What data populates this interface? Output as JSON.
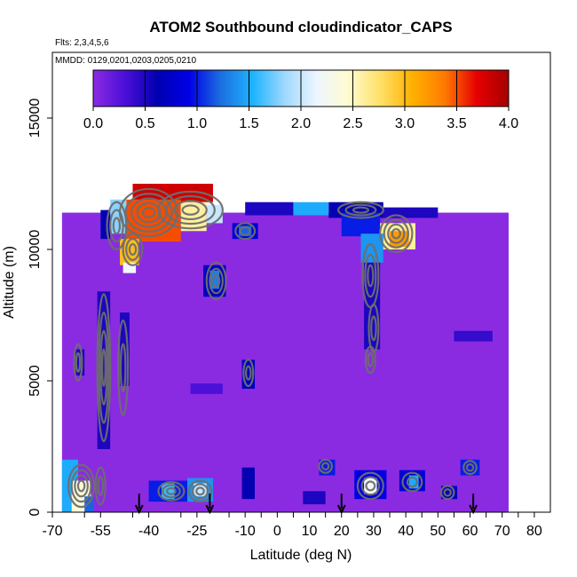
{
  "chart_data": {
    "type": "heatmap",
    "title": "ATOM2 Southbound cloudindicator_CAPS",
    "flights_note": "Flts: 2,3,4,5,6",
    "dates_note": "MMDD: 0129,0201,0203,0205,0210",
    "xlabel": "Latitude (deg N)",
    "ylabel": "Altitude (m)",
    "xlim": [
      -70,
      85
    ],
    "ylim": [
      0,
      17500
    ],
    "x_ticks": [
      -70,
      -55,
      -40,
      -25,
      -10,
      0,
      10,
      20,
      30,
      40,
      50,
      60,
      70,
      80
    ],
    "x_tick_labels": [
      "-70",
      "-55",
      "-40",
      "-25",
      "-10",
      "0",
      "10",
      "20",
      "30",
      "40",
      "50",
      "60",
      "70",
      "80"
    ],
    "x_minor_ticks": [
      -60,
      -45,
      -30,
      -15,
      -5,
      5,
      15,
      25,
      35,
      45,
      55,
      65,
      75
    ],
    "y_ticks": [
      0,
      5000,
      10000,
      15000
    ],
    "y_tick_labels": [
      "0",
      "5000",
      "10000",
      "15000"
    ],
    "colorbar": {
      "range": [
        0,
        4
      ],
      "ticks": [
        0,
        0.5,
        1,
        1.5,
        2,
        2.5,
        3,
        3.5,
        4
      ],
      "tick_labels": [
        "0.0",
        "0.5",
        "1.0",
        "1.5",
        "2.0",
        "2.5",
        "3.0",
        "3.5",
        "4.0"
      ],
      "colors": [
        "#8a2be2",
        "#4b0fd8",
        "#0000b0",
        "#0000e6",
        "#1c6fe0",
        "#1eb4ff",
        "#9fd8ff",
        "#eef6ff",
        "#fffbd0",
        "#ffe066",
        "#ffb000",
        "#ff7a00",
        "#e60000",
        "#a50000"
      ]
    },
    "base_region": {
      "lat_range": [
        -67,
        72
      ],
      "alt_range": [
        0,
        11400
      ],
      "value": 0
    },
    "cells": [
      {
        "lat": [
          -45,
          -20
        ],
        "alt": [
          11800,
          12500
        ],
        "value": 3.8
      },
      {
        "lat": [
          -47,
          -30
        ],
        "alt": [
          10300,
          11900
        ],
        "value": 3.5
      },
      {
        "lat": [
          -30,
          -22
        ],
        "alt": [
          10700,
          11800
        ],
        "value": 2.6
      },
      {
        "lat": [
          -22,
          -17
        ],
        "alt": [
          11000,
          11700
        ],
        "value": 2.0
      },
      {
        "lat": [
          -52,
          -47
        ],
        "alt": [
          10600,
          11900
        ],
        "value": 1.8
      },
      {
        "lat": [
          -55,
          -52
        ],
        "alt": [
          10400,
          11500
        ],
        "value": 0.6
      },
      {
        "lat": [
          -49,
          -43
        ],
        "alt": [
          9400,
          10400
        ],
        "value": 3.0
      },
      {
        "lat": [
          -48,
          -44
        ],
        "alt": [
          9100,
          9500
        ],
        "value": 2.2
      },
      {
        "lat": [
          -14,
          -6
        ],
        "alt": [
          10400,
          11000
        ],
        "value": 0.8
      },
      {
        "lat": [
          -12,
          -8
        ],
        "alt": [
          10500,
          10900
        ],
        "value": 1.2
      },
      {
        "lat": [
          -23,
          -16
        ],
        "alt": [
          8200,
          9400
        ],
        "value": 0.7
      },
      {
        "lat": [
          -21,
          -18
        ],
        "alt": [
          8500,
          9200
        ],
        "value": 1.3
      },
      {
        "lat": [
          -10,
          5
        ],
        "alt": [
          11300,
          11800
        ],
        "value": 0.5
      },
      {
        "lat": [
          5,
          16
        ],
        "alt": [
          11300,
          11800
        ],
        "value": 1.5
      },
      {
        "lat": [
          16,
          33
        ],
        "alt": [
          11200,
          11800
        ],
        "value": 0.6
      },
      {
        "lat": [
          33,
          50
        ],
        "alt": [
          11200,
          11600
        ],
        "value": 0.5
      },
      {
        "lat": [
          20,
          32
        ],
        "alt": [
          10500,
          11400
        ],
        "value": 1.0
      },
      {
        "lat": [
          32,
          43
        ],
        "alt": [
          10000,
          11000
        ],
        "value": 2.6
      },
      {
        "lat": [
          35,
          41
        ],
        "alt": [
          10100,
          10700
        ],
        "value": 3.2
      },
      {
        "lat": [
          26,
          33
        ],
        "alt": [
          9500,
          10600
        ],
        "value": 1.4
      },
      {
        "lat": [
          27,
          32
        ],
        "alt": [
          6200,
          9500
        ],
        "value": 0.5
      },
      {
        "lat": [
          -56,
          -52
        ],
        "alt": [
          2400,
          8400
        ],
        "value": 0.5
      },
      {
        "lat": [
          -63,
          -60
        ],
        "alt": [
          5200,
          6200
        ],
        "value": 0.5
      },
      {
        "lat": [
          -49,
          -46
        ],
        "alt": [
          4800,
          7600
        ],
        "value": 0.5
      },
      {
        "lat": [
          -27,
          -17
        ],
        "alt": [
          4500,
          4900
        ],
        "value": 0.3
      },
      {
        "lat": [
          -11,
          -7
        ],
        "alt": [
          4700,
          5800
        ],
        "value": 0.7
      },
      {
        "lat": [
          55,
          67
        ],
        "alt": [
          6500,
          6900
        ],
        "value": 0.4
      },
      {
        "lat": [
          -67,
          -62
        ],
        "alt": [
          0,
          2000
        ],
        "value": 1.5
      },
      {
        "lat": [
          -64,
          -58
        ],
        "alt": [
          0,
          1200
        ],
        "value": 2.4
      },
      {
        "lat": [
          -60,
          -57
        ],
        "alt": [
          0,
          600
        ],
        "value": 1.2
      },
      {
        "lat": [
          -40,
          -28
        ],
        "alt": [
          400,
          1200
        ],
        "value": 1.0
      },
      {
        "lat": [
          -36,
          -32
        ],
        "alt": [
          500,
          1100
        ],
        "value": 1.6
      },
      {
        "lat": [
          -28,
          -20
        ],
        "alt": [
          400,
          1300
        ],
        "value": 1.4
      },
      {
        "lat": [
          -26,
          -22
        ],
        "alt": [
          600,
          1100
        ],
        "value": 2.0
      },
      {
        "lat": [
          -11,
          -7
        ],
        "alt": [
          500,
          1700
        ],
        "value": 0.6
      },
      {
        "lat": [
          8,
          15
        ],
        "alt": [
          300,
          800
        ],
        "value": 0.5
      },
      {
        "lat": [
          13,
          18
        ],
        "alt": [
          1400,
          2000
        ],
        "value": 1.0
      },
      {
        "lat": [
          24,
          34
        ],
        "alt": [
          500,
          1600
        ],
        "value": 0.9
      },
      {
        "lat": [
          27,
          31
        ],
        "alt": [
          700,
          1300
        ],
        "value": 2.2
      },
      {
        "lat": [
          38,
          46
        ],
        "alt": [
          800,
          1600
        ],
        "value": 0.8
      },
      {
        "lat": [
          41,
          44
        ],
        "alt": [
          900,
          1400
        ],
        "value": 1.5
      },
      {
        "lat": [
          51,
          56
        ],
        "alt": [
          500,
          1000
        ],
        "value": 0.7
      },
      {
        "lat": [
          57,
          63
        ],
        "alt": [
          1400,
          2000
        ],
        "value": 1.0
      }
    ],
    "contours": [
      {
        "lat": -40,
        "alt": 11400,
        "rx": 9,
        "ry": 900,
        "n": 5
      },
      {
        "lat": -27,
        "alt": 11500,
        "rx": 10,
        "ry": 700,
        "n": 4
      },
      {
        "lat": -50,
        "alt": 10900,
        "rx": 3,
        "ry": 900,
        "n": 3
      },
      {
        "lat": -45,
        "alt": 10000,
        "rx": 3,
        "ry": 600,
        "n": 3
      },
      {
        "lat": -10,
        "alt": 10700,
        "rx": 3,
        "ry": 300,
        "n": 2
      },
      {
        "lat": -19,
        "alt": 8800,
        "rx": 3,
        "ry": 700,
        "n": 3
      },
      {
        "lat": 26,
        "alt": 11500,
        "rx": 7,
        "ry": 300,
        "n": 3
      },
      {
        "lat": 37,
        "alt": 10600,
        "rx": 5,
        "ry": 700,
        "n": 4
      },
      {
        "lat": 29,
        "alt": 9000,
        "rx": 2.5,
        "ry": 1200,
        "n": 3
      },
      {
        "lat": 30,
        "alt": 7000,
        "rx": 1.5,
        "ry": 900,
        "n": 2
      },
      {
        "lat": 29,
        "alt": 5800,
        "rx": 1.5,
        "ry": 500,
        "n": 2
      },
      {
        "lat": -54,
        "alt": 5500,
        "rx": 2,
        "ry": 2800,
        "n": 4
      },
      {
        "lat": -48,
        "alt": 5500,
        "rx": 1.5,
        "ry": 1800,
        "n": 2
      },
      {
        "lat": -62,
        "alt": 5700,
        "rx": 1.2,
        "ry": 700,
        "n": 2
      },
      {
        "lat": -9,
        "alt": 5300,
        "rx": 1.5,
        "ry": 500,
        "n": 2
      },
      {
        "lat": -61,
        "alt": 1000,
        "rx": 4,
        "ry": 800,
        "n": 4
      },
      {
        "lat": -55,
        "alt": 1000,
        "rx": 1.5,
        "ry": 700,
        "n": 2
      },
      {
        "lat": -33,
        "alt": 800,
        "rx": 4,
        "ry": 350,
        "n": 3
      },
      {
        "lat": -24,
        "alt": 800,
        "rx": 3.5,
        "ry": 400,
        "n": 3
      },
      {
        "lat": 15,
        "alt": 1750,
        "rx": 2,
        "ry": 250,
        "n": 2
      },
      {
        "lat": 29,
        "alt": 1000,
        "rx": 4,
        "ry": 500,
        "n": 3
      },
      {
        "lat": 42,
        "alt": 1150,
        "rx": 3,
        "ry": 350,
        "n": 2
      },
      {
        "lat": 53,
        "alt": 750,
        "rx": 2,
        "ry": 250,
        "n": 2
      },
      {
        "lat": 60,
        "alt": 1700,
        "rx": 2,
        "ry": 250,
        "n": 2
      }
    ],
    "arrows": [
      -43,
      -21,
      20,
      61
    ]
  }
}
